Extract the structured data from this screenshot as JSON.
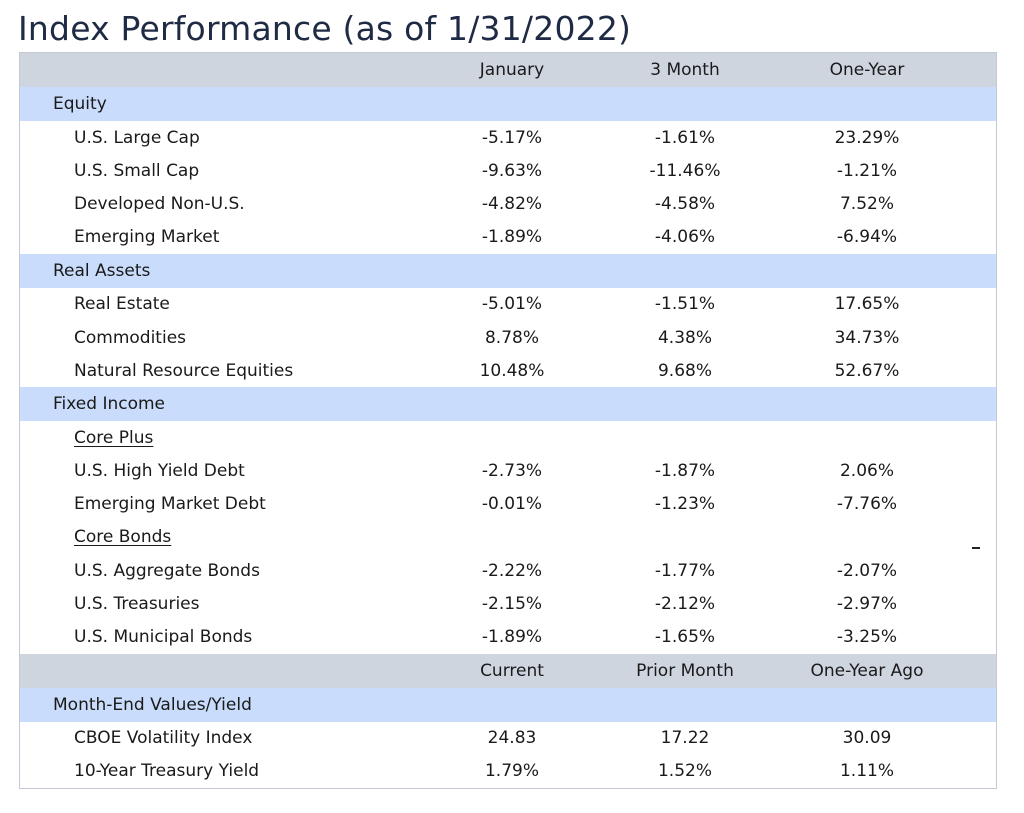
{
  "title": "Index Performance (as of 1/31/2022)",
  "header1": {
    "col1": "January",
    "col2": "3 Month",
    "col3": "One-Year"
  },
  "sections": {
    "equity": {
      "label": "Equity",
      "rows": [
        {
          "name": "U.S. Large Cap",
          "v1": "-5.17%",
          "v2": "-1.61%",
          "v3": "23.29%"
        },
        {
          "name": "U.S. Small Cap",
          "v1": "-9.63%",
          "v2": "-11.46%",
          "v3": "-1.21%"
        },
        {
          "name": "Developed Non-U.S.",
          "v1": "-4.82%",
          "v2": "-4.58%",
          "v3": "7.52%"
        },
        {
          "name": "Emerging Market",
          "v1": "-1.89%",
          "v2": "-4.06%",
          "v3": "-6.94%"
        }
      ]
    },
    "real_assets": {
      "label": "Real Assets",
      "rows": [
        {
          "name": "Real Estate",
          "v1": "-5.01%",
          "v2": "-1.51%",
          "v3": "17.65%"
        },
        {
          "name": "Commodities",
          "v1": "8.78%",
          "v2": "4.38%",
          "v3": "34.73%"
        },
        {
          "name": "Natural Resource Equities",
          "v1": "10.48%",
          "v2": "9.68%",
          "v3": "52.67%"
        }
      ]
    },
    "fixed_income": {
      "label": "Fixed Income",
      "core_plus_label": "Core Plus",
      "core_plus_rows": [
        {
          "name": "U.S. High Yield Debt",
          "v1": "-2.73%",
          "v2": "-1.87%",
          "v3": "2.06%"
        },
        {
          "name": "Emerging Market Debt",
          "v1": "-0.01%",
          "v2": "-1.23%",
          "v3": "-7.76%"
        }
      ],
      "core_bonds_label": "Core Bonds",
      "core_bonds_rows": [
        {
          "name": "U.S. Aggregate Bonds",
          "v1": "-2.22%",
          "v2": "-1.77%",
          "v3": "-2.07%"
        },
        {
          "name": "U.S. Treasuries",
          "v1": "-2.15%",
          "v2": "-2.12%",
          "v3": "-2.97%"
        },
        {
          "name": "U.S. Municipal Bonds",
          "v1": "-1.89%",
          "v2": "-1.65%",
          "v3": "-3.25%"
        }
      ]
    }
  },
  "header2": {
    "col1": "Current",
    "col2": "Prior Month",
    "col3": "One-Year Ago"
  },
  "month_end": {
    "label": "Month-End Values/Yield",
    "rows": [
      {
        "name": "CBOE Volatility Index",
        "v1": "24.83",
        "v2": "17.22",
        "v3": "30.09"
      },
      {
        "name": "10-Year Treasury Yield",
        "v1": "1.79%",
        "v2": "1.52%",
        "v3": "1.11%"
      }
    ]
  },
  "stray_mark": "-",
  "colors": {
    "header_bg": "#cfd5df",
    "section_bg": "#c9dcfb",
    "title_color": "#1f2a44"
  }
}
